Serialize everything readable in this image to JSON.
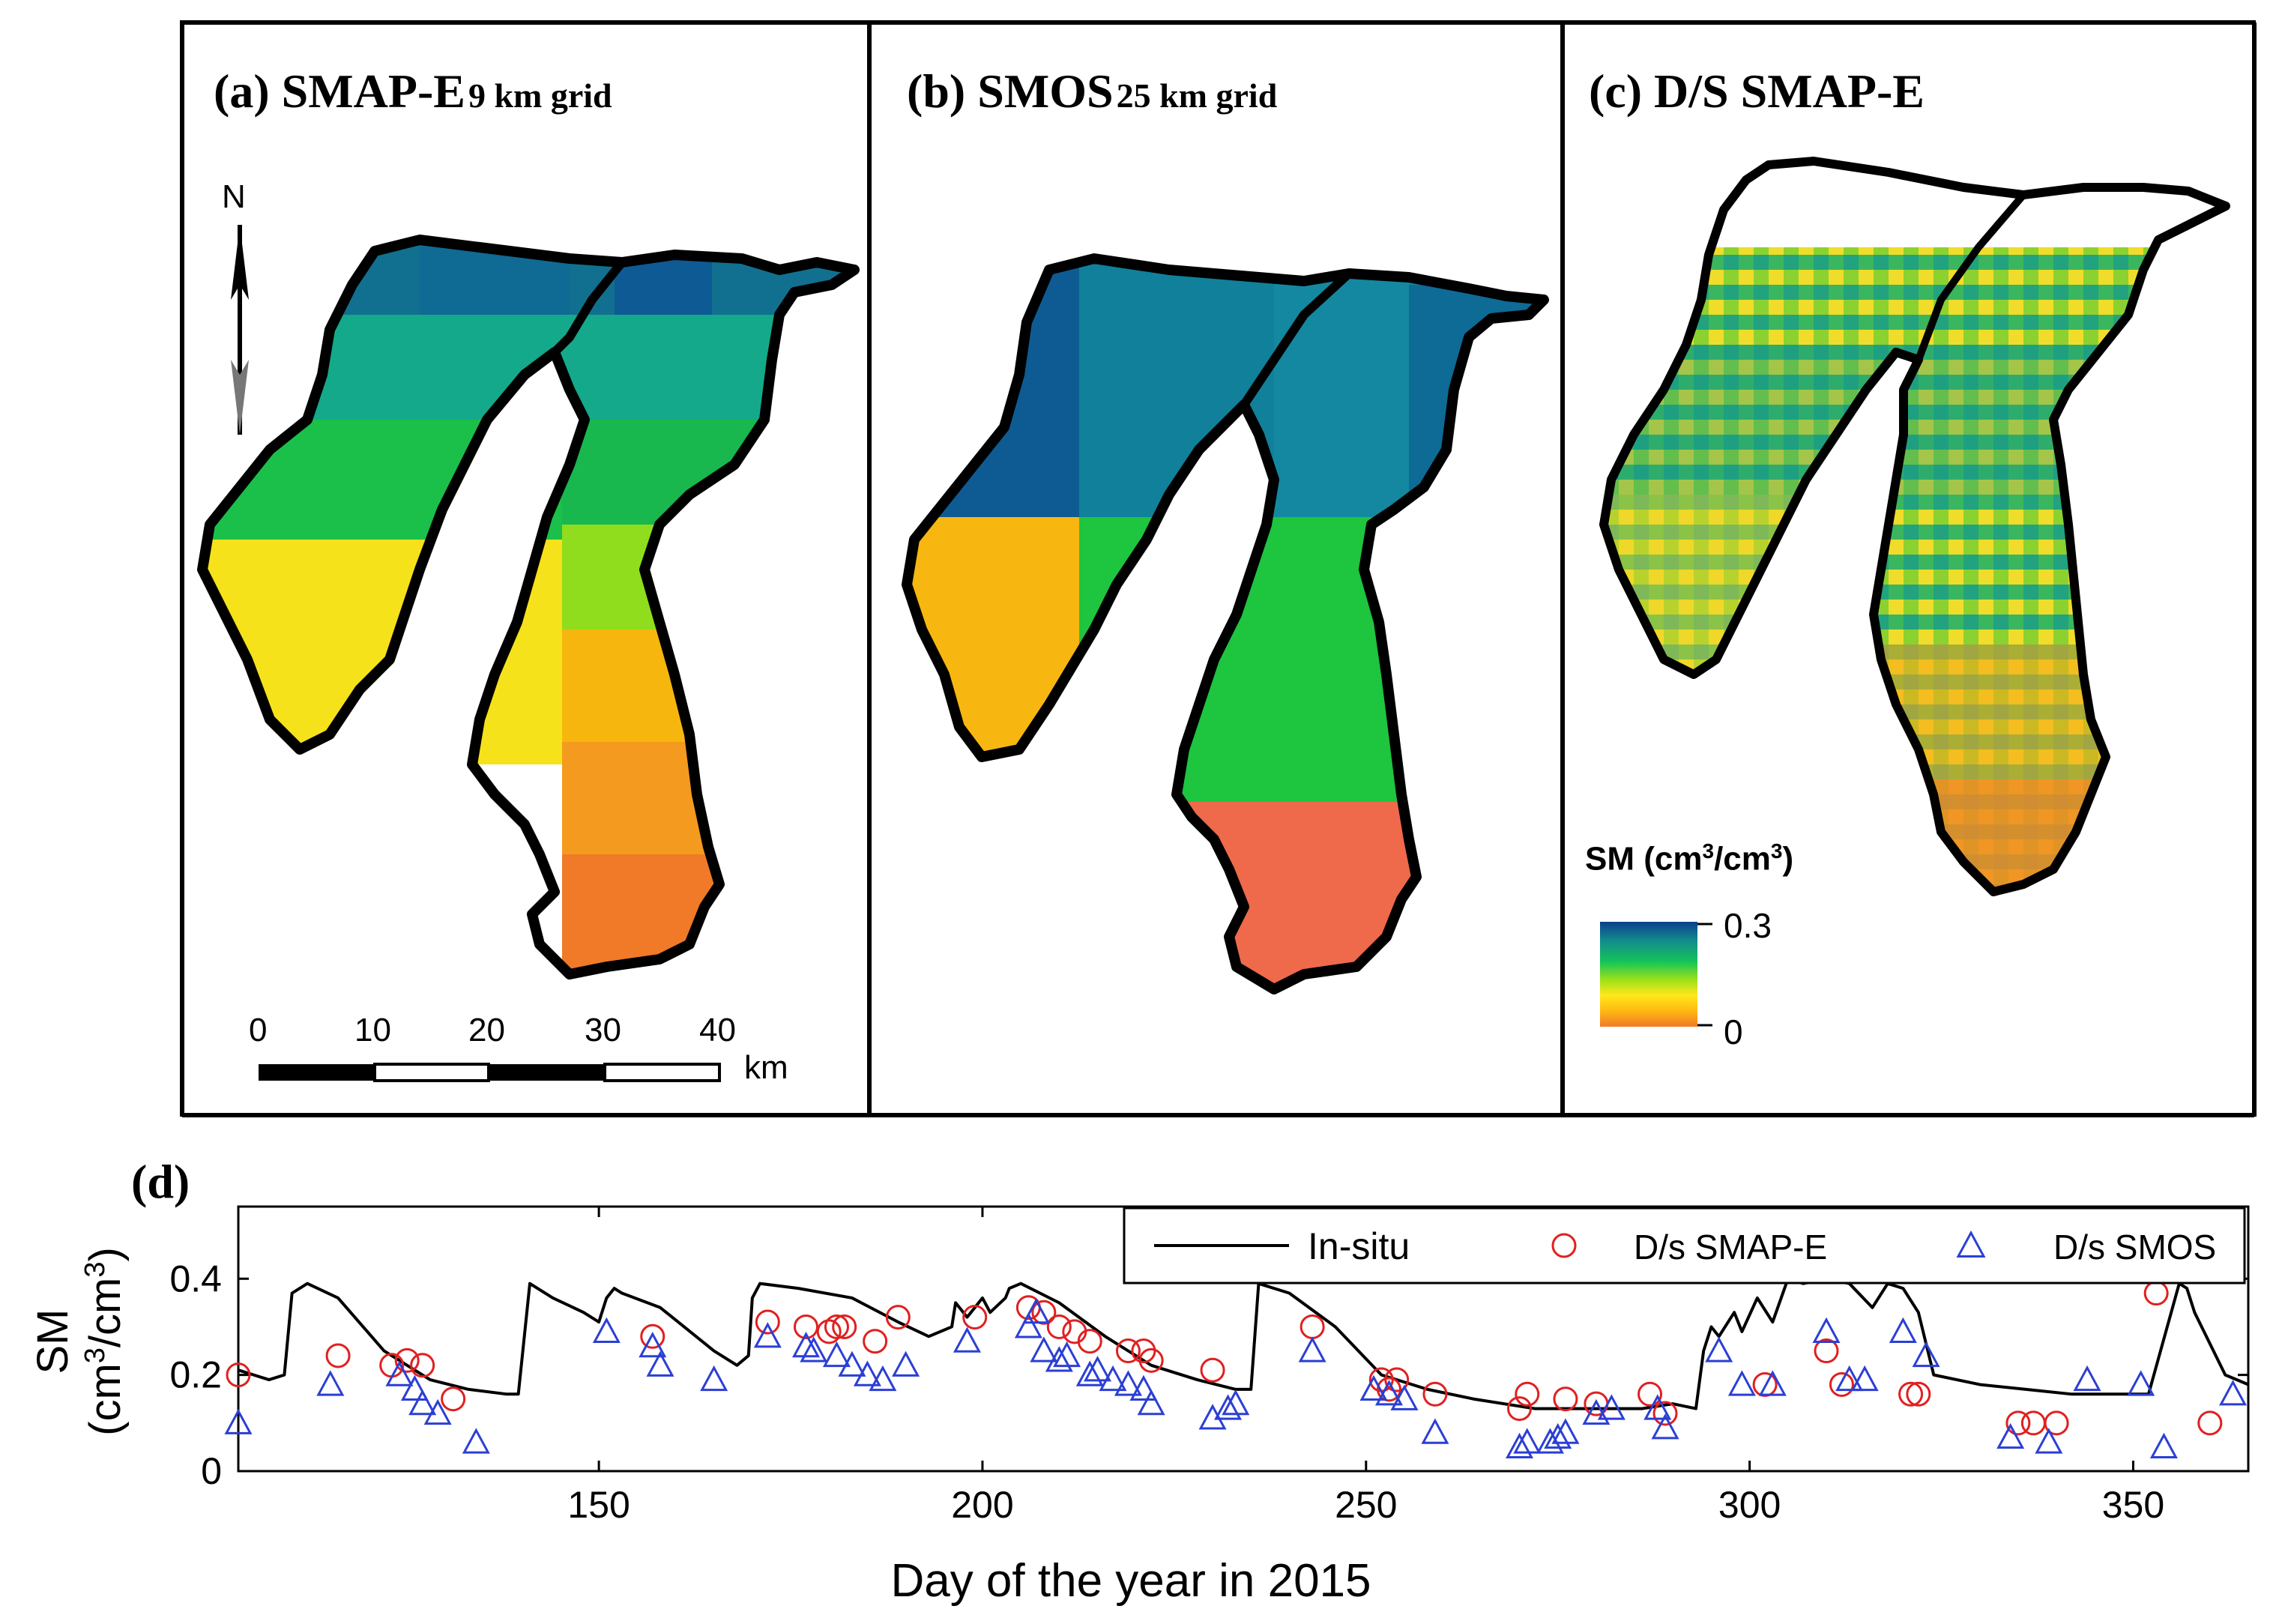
{
  "panels": {
    "a": {
      "title_main": "(a) SMAP-E",
      "title_sub": "9 km grid",
      "north": "N",
      "scale_ticks": [
        "0",
        "10",
        "20",
        "30",
        "40"
      ],
      "scale_unit": "km"
    },
    "b": {
      "title_main": "(b) SMOS",
      "title_sub": "25 km grid"
    },
    "c": {
      "title_main": "(c) D/S SMAP-E"
    },
    "d": {
      "label": "(d)"
    }
  },
  "colorbar": {
    "title": "SM (cm",
    "title_mid": "/cm",
    "title_end": ")",
    "title_sup": "3",
    "max_label": "0.3",
    "min_label": "0",
    "colors": [
      "#0b3f8c",
      "#128c8c",
      "#14c45a",
      "#9be01a",
      "#ffe81a",
      "#ffb812",
      "#f07a28"
    ]
  },
  "chart_data": {
    "type": "scatter",
    "title": "",
    "xlabel": "Day of the year in 2015",
    "ylabel": "SM",
    "ylabel2": "(cm",
    "ylabel2_mid": "/cm",
    "ylabel2_end": ")",
    "ylabel_sup": "3",
    "xlim": [
      103,
      365
    ],
    "ylim": [
      0,
      0.55
    ],
    "xticks": [
      150,
      200,
      250,
      300,
      350
    ],
    "yticks": [
      0,
      0.2,
      0.4
    ],
    "xtick_labels": [
      "150",
      "200",
      "250",
      "300",
      "350"
    ],
    "ytick_labels": [
      "0",
      "0.2",
      "0.4"
    ],
    "legend": [
      "In-situ",
      "D/s SMAP-E",
      "D/s SMOS"
    ],
    "series": [
      {
        "name": "In-situ",
        "kind": "line",
        "color": "#000000",
        "x": [
          103,
          105,
          107,
          109,
          110,
          112,
          116,
          122,
          128,
          133,
          138,
          139.5,
          141,
          144,
          148,
          150,
          151,
          152,
          153,
          158,
          165,
          168,
          169.5,
          170,
          171,
          176,
          183,
          189,
          193,
          196,
          196.5,
          197,
          198,
          200,
          201,
          203,
          203.5,
          205,
          210,
          216,
          222,
          228,
          233,
          235,
          236,
          240,
          246,
          252,
          258,
          264,
          272,
          280,
          286,
          290,
          293,
          294,
          295,
          296,
          298,
          299,
          301,
          303,
          305,
          307,
          310,
          313,
          316,
          318,
          320,
          322,
          324,
          330,
          336,
          342,
          348,
          352,
          356,
          357,
          358,
          362,
          365
        ],
        "y": [
          0.21,
          0.2,
          0.19,
          0.2,
          0.37,
          0.39,
          0.36,
          0.25,
          0.19,
          0.17,
          0.16,
          0.16,
          0.39,
          0.36,
          0.33,
          0.31,
          0.36,
          0.38,
          0.37,
          0.34,
          0.25,
          0.22,
          0.24,
          0.36,
          0.39,
          0.38,
          0.36,
          0.31,
          0.28,
          0.3,
          0.35,
          0.34,
          0.32,
          0.36,
          0.33,
          0.36,
          0.38,
          0.39,
          0.35,
          0.28,
          0.22,
          0.19,
          0.17,
          0.17,
          0.39,
          0.37,
          0.3,
          0.2,
          0.17,
          0.15,
          0.13,
          0.13,
          0.13,
          0.14,
          0.13,
          0.25,
          0.3,
          0.28,
          0.33,
          0.29,
          0.36,
          0.31,
          0.4,
          0.39,
          0.4,
          0.39,
          0.34,
          0.39,
          0.38,
          0.33,
          0.2,
          0.18,
          0.17,
          0.16,
          0.16,
          0.16,
          0.39,
          0.38,
          0.33,
          0.2,
          0.18
        ]
      },
      {
        "name": "D/s SMAP-E",
        "kind": "circle",
        "color": "#e02020",
        "x": [
          103,
          116,
          123,
          125,
          127,
          131,
          157,
          172,
          177,
          180,
          181,
          182,
          186,
          189,
          199,
          206,
          208,
          210,
          212,
          214,
          219,
          221,
          222,
          230,
          243,
          252,
          253,
          254,
          259,
          270,
          271,
          276,
          280,
          287,
          289,
          302,
          310,
          312,
          321,
          322,
          335,
          337,
          340,
          353,
          360
        ],
        "y": [
          0.2,
          0.24,
          0.22,
          0.23,
          0.22,
          0.15,
          0.28,
          0.31,
          0.3,
          0.29,
          0.3,
          0.3,
          0.27,
          0.32,
          0.32,
          0.34,
          0.33,
          0.3,
          0.29,
          0.27,
          0.25,
          0.25,
          0.23,
          0.21,
          0.3,
          0.19,
          0.17,
          0.19,
          0.16,
          0.13,
          0.16,
          0.15,
          0.14,
          0.16,
          0.12,
          0.18,
          0.25,
          0.18,
          0.16,
          0.16,
          0.1,
          0.1,
          0.1,
          0.37,
          0.1
        ]
      },
      {
        "name": "D/s SMOS",
        "kind": "triangle",
        "color": "#2b3fd4",
        "x": [
          103,
          115,
          124,
          126,
          127,
          129,
          134,
          151,
          157,
          158,
          165,
          172,
          177,
          178,
          181,
          183,
          185,
          187,
          190,
          198,
          206,
          207,
          208,
          210,
          211,
          214,
          215,
          217,
          219,
          221,
          222,
          230,
          232,
          233,
          243,
          251,
          253,
          255,
          259,
          270,
          271,
          274,
          275,
          276,
          280,
          282,
          288,
          289,
          296,
          299,
          303,
          310,
          313,
          315,
          320,
          323,
          334,
          339,
          344,
          351,
          354,
          363
        ],
        "y": [
          0.1,
          0.18,
          0.2,
          0.17,
          0.14,
          0.12,
          0.06,
          0.29,
          0.26,
          0.22,
          0.19,
          0.28,
          0.26,
          0.25,
          0.24,
          0.22,
          0.2,
          0.19,
          0.22,
          0.27,
          0.3,
          0.33,
          0.25,
          0.23,
          0.24,
          0.2,
          0.21,
          0.19,
          0.18,
          0.17,
          0.14,
          0.11,
          0.13,
          0.14,
          0.25,
          0.17,
          0.16,
          0.15,
          0.08,
          0.05,
          0.06,
          0.06,
          0.07,
          0.08,
          0.12,
          0.13,
          0.13,
          0.09,
          0.25,
          0.18,
          0.18,
          0.29,
          0.19,
          0.19,
          0.29,
          0.24,
          0.07,
          0.06,
          0.19,
          0.18,
          0.05,
          0.16
        ]
      }
    ]
  }
}
